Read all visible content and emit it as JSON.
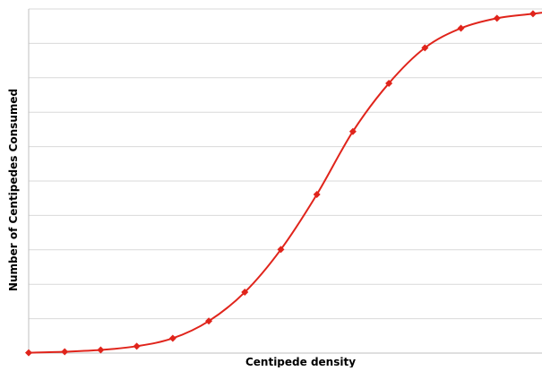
{
  "chart_data": {
    "type": "line",
    "title": "",
    "xlabel": "Centipede density",
    "ylabel": "Number of Centipedes Consumed",
    "x": [
      1,
      2,
      3,
      4,
      5,
      6,
      7,
      8,
      9,
      10,
      11,
      12,
      13,
      14,
      15
    ],
    "series": [
      {
        "values": [
          0.1,
          0.4,
          0.9,
          2.0,
          4.3,
          9.3,
          17.7,
          30.1,
          46.1,
          64.4,
          78.4,
          88.7,
          94.4,
          97.3,
          98.6
        ]
      }
    ],
    "ylim": [
      0,
      100
    ],
    "xlim": [
      1,
      15.25
    ],
    "grid": "horizontal",
    "y_gridlines": 10,
    "tick_labels_shown": false,
    "legend": "none",
    "colors": {
      "line": "#e0241b",
      "marker": "#e0241b",
      "grid": "#d9d9d9",
      "axis": "#bfbfbf"
    },
    "marker": "diamond"
  }
}
